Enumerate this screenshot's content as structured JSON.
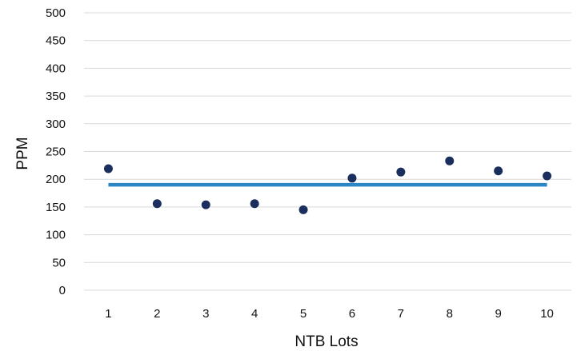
{
  "chart_data": {
    "type": "scatter",
    "xlabel": "NTB Lots",
    "ylabel": "PPM",
    "ylim": [
      0,
      500
    ],
    "y_ticks": [
      0,
      50,
      100,
      150,
      200,
      250,
      300,
      350,
      400,
      450,
      500
    ],
    "x_ticks": [
      1,
      2,
      3,
      4,
      5,
      6,
      7,
      8,
      9,
      10
    ],
    "grid": true,
    "legend": "none",
    "series": [
      {
        "type": "scatter",
        "color": "#1b2f5e",
        "x": [
          1,
          2,
          3,
          4,
          5,
          6,
          7,
          8,
          9,
          10
        ],
        "y": [
          219,
          156,
          154,
          156,
          145,
          202,
          213,
          233,
          215,
          206
        ]
      },
      {
        "type": "line",
        "color": "#2b86c5",
        "x": [
          1,
          10
        ],
        "y": [
          190,
          190
        ]
      }
    ]
  }
}
